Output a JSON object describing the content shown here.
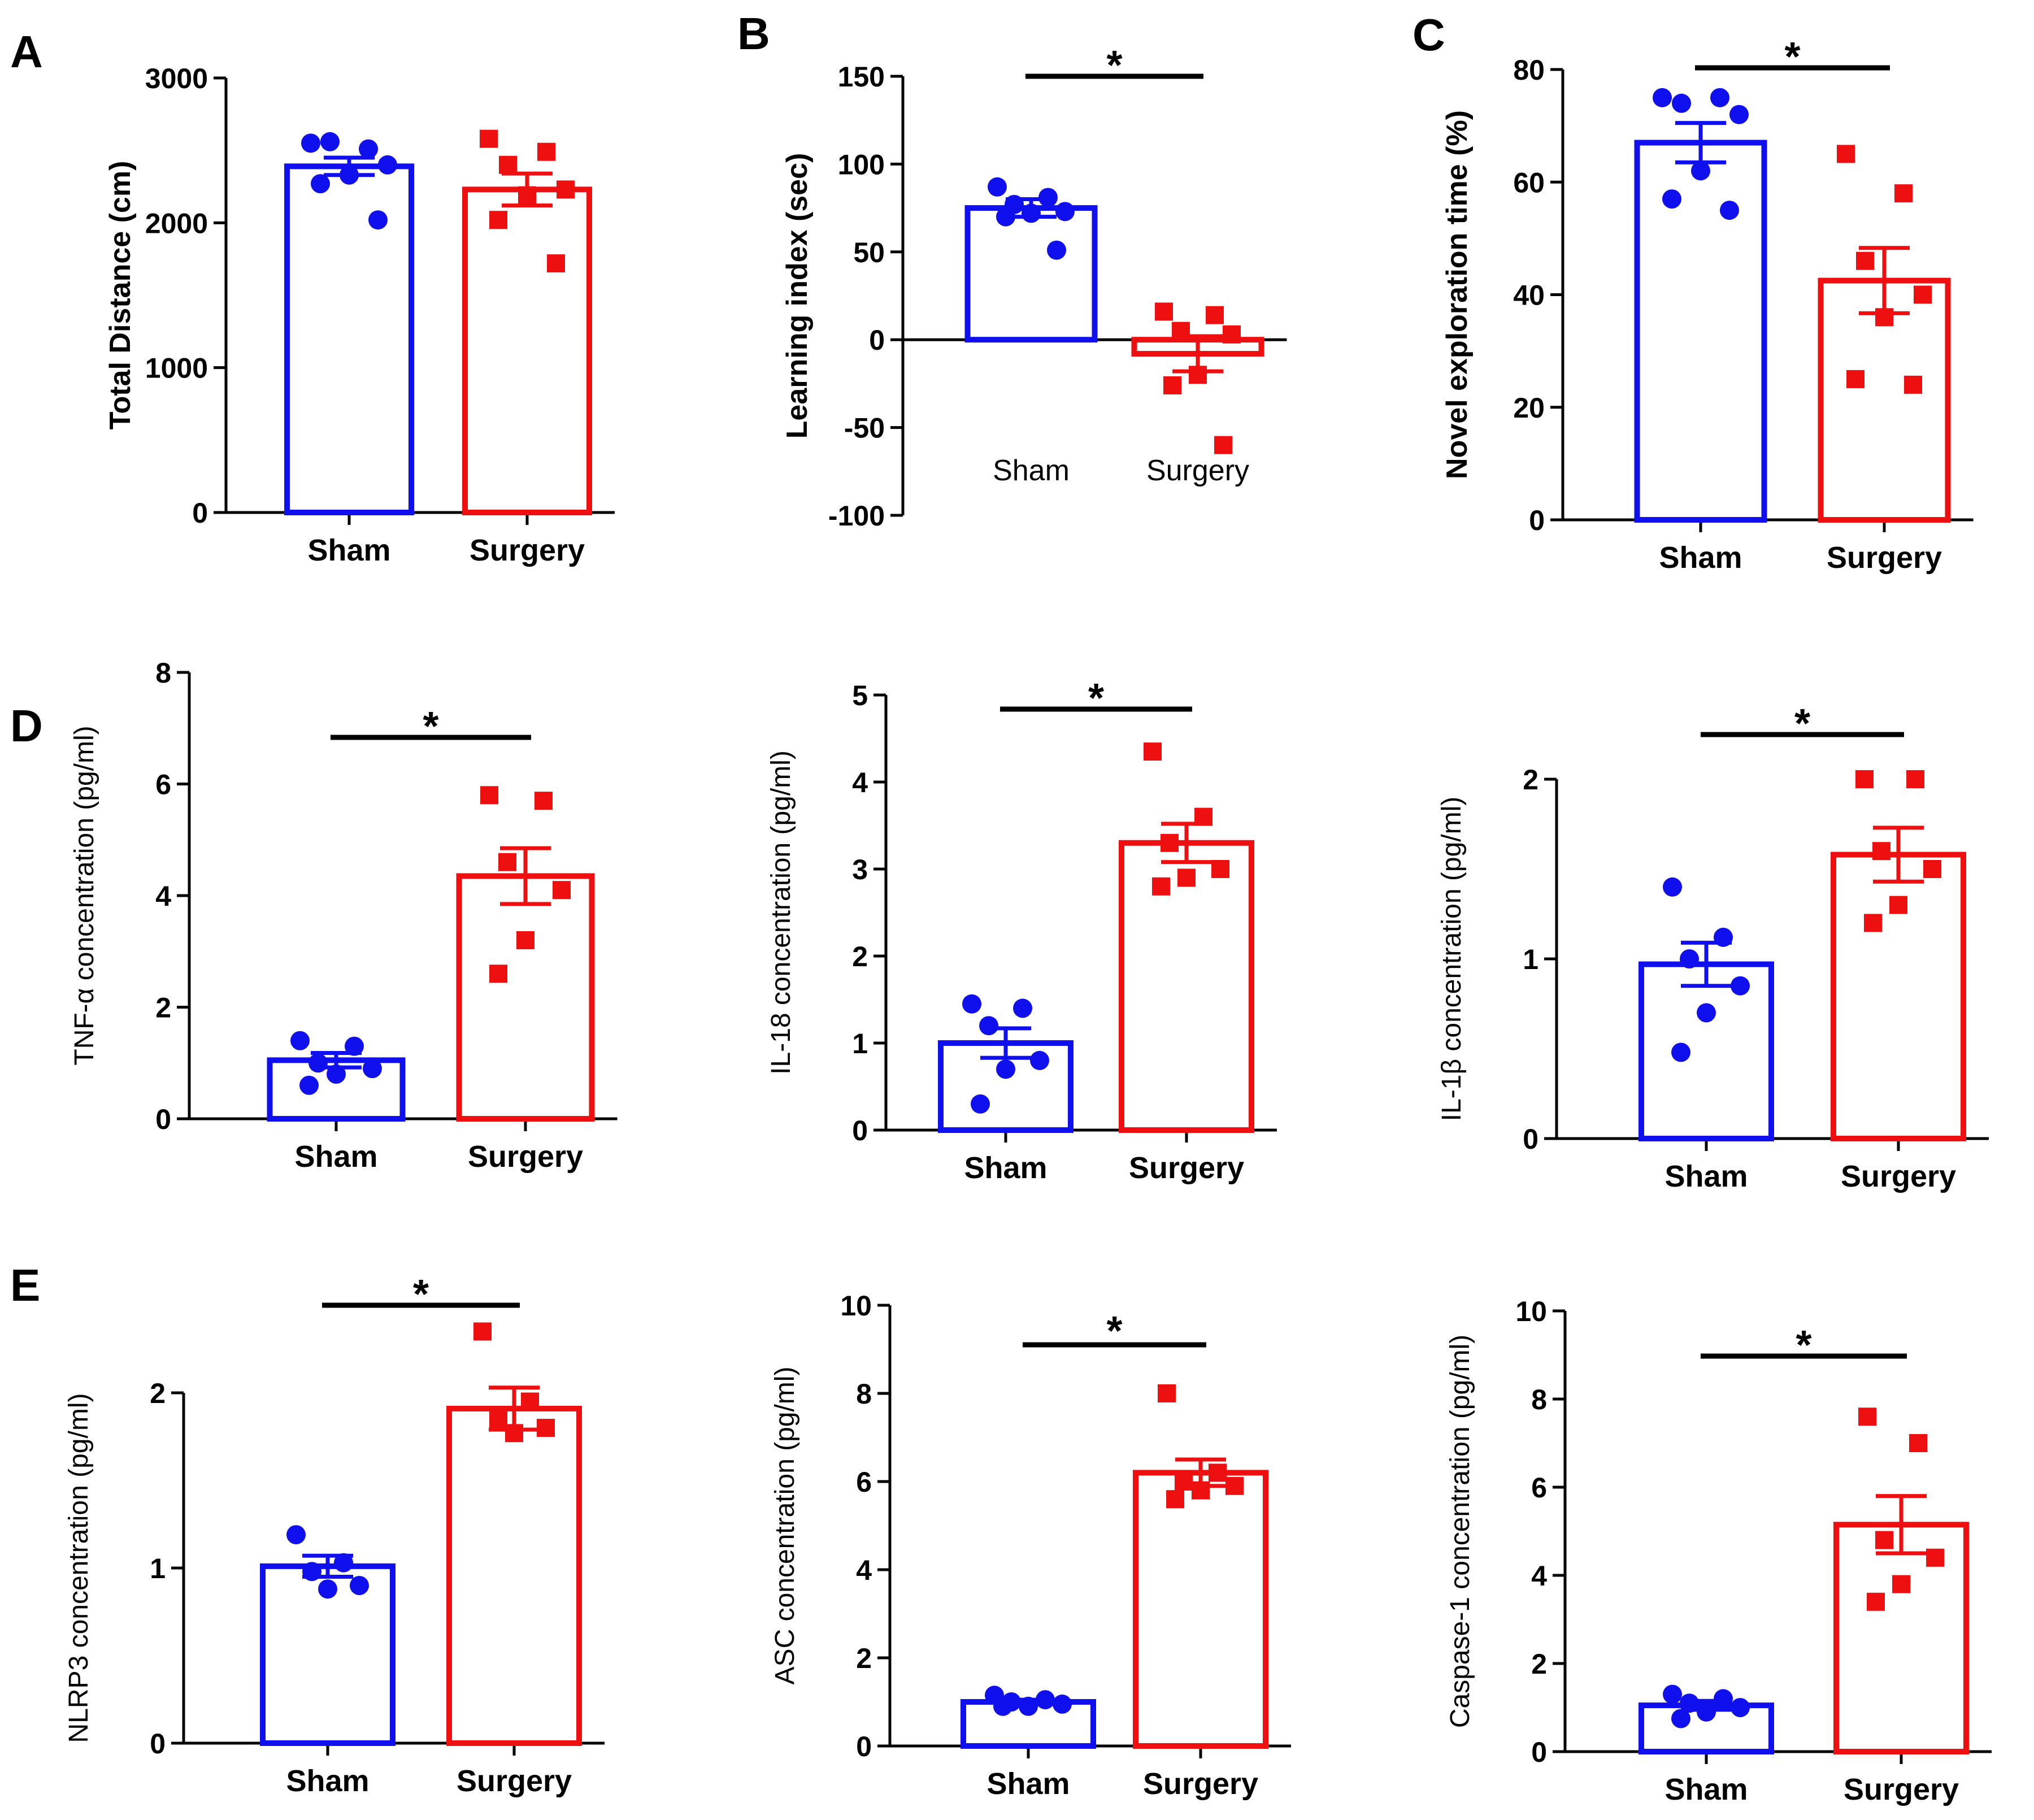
{
  "figure": {
    "panel_letters": [
      "A",
      "B",
      "C",
      "D",
      "E"
    ],
    "group_labels": [
      "Sham",
      "Surgery"
    ],
    "colors": {
      "sham": "#1010ee",
      "surgery": "#ee1010",
      "axis": "#000000"
    }
  },
  "chart_data": [
    {
      "id": "A",
      "type": "bar",
      "title": "",
      "ylabel": "Total Distance (cm)",
      "bold_ylabel": true,
      "label_style": "bold-below",
      "categories": [
        "Sham",
        "Surgery"
      ],
      "ylim": [
        0,
        3000
      ],
      "yticks": [
        0,
        1000,
        2000,
        3000
      ],
      "means": [
        2390,
        2230
      ],
      "sem": [
        60,
        110
      ],
      "points": [
        [
          2550,
          2510,
          2560,
          2400,
          2330,
          2270,
          2020
        ],
        [
          2580,
          2490,
          2400,
          2230,
          2190,
          2020,
          1720
        ]
      ],
      "significance": null
    },
    {
      "id": "B",
      "type": "bar",
      "title": "",
      "ylabel": "Learning index (sec)",
      "bold_ylabel": true,
      "label_style": "inside-normal",
      "categories": [
        "Sham",
        "Surgery"
      ],
      "ylim": [
        -100,
        150
      ],
      "yticks": [
        -100,
        -50,
        0,
        50,
        100,
        150
      ],
      "means": [
        75,
        -8
      ],
      "sem": [
        5,
        10
      ],
      "points": [
        [
          87,
          81,
          77,
          73,
          72,
          70,
          51
        ],
        [
          16,
          14,
          5,
          3,
          -20,
          -26,
          -60
        ]
      ],
      "significance": "*"
    },
    {
      "id": "C",
      "type": "bar",
      "title": "",
      "ylabel": "Novel exploration time (%)",
      "bold_ylabel": true,
      "label_style": "bold-below",
      "categories": [
        "Sham",
        "Surgery"
      ],
      "ylim": [
        0,
        80
      ],
      "yticks": [
        0,
        20,
        40,
        60,
        80
      ],
      "means": [
        67,
        42.5
      ],
      "sem": [
        3.5,
        5.8
      ],
      "points": [
        [
          75,
          75,
          74,
          72,
          62,
          57,
          55
        ],
        [
          65,
          58,
          46,
          40,
          36,
          25,
          24
        ]
      ],
      "significance": "*"
    },
    {
      "id": "D1",
      "type": "bar",
      "title": "",
      "ylabel": "TNF-α concentration (pg/ml)",
      "bold_ylabel": false,
      "label_style": "bold-below",
      "categories": [
        "Sham",
        "Surgery"
      ],
      "ylim": [
        0,
        8
      ],
      "yticks": [
        0,
        2,
        4,
        6,
        8
      ],
      "means": [
        1.05,
        4.35
      ],
      "sem": [
        0.13,
        0.5
      ],
      "points": [
        [
          1.4,
          1.3,
          1.0,
          0.9,
          0.8,
          0.6
        ],
        [
          5.8,
          5.7,
          4.6,
          4.1,
          3.2,
          2.6
        ]
      ],
      "significance": "*"
    },
    {
      "id": "D2",
      "type": "bar",
      "title": "",
      "ylabel": "IL-18 concentration (pg/ml)",
      "bold_ylabel": false,
      "label_style": "bold-below",
      "categories": [
        "Sham",
        "Surgery"
      ],
      "ylim": [
        0,
        5
      ],
      "yticks": [
        0,
        1,
        2,
        3,
        4,
        5
      ],
      "means": [
        1.0,
        3.3
      ],
      "sem": [
        0.17,
        0.22
      ],
      "points": [
        [
          1.45,
          1.4,
          1.2,
          0.8,
          0.7,
          0.3
        ],
        [
          4.35,
          3.6,
          3.3,
          3.0,
          2.9,
          2.8
        ]
      ],
      "significance": "*"
    },
    {
      "id": "D3",
      "type": "bar",
      "title": "",
      "ylabel": "IL-1β concentration (pg/ml)",
      "bold_ylabel": false,
      "label_style": "bold-below",
      "categories": [
        "Sham",
        "Surgery"
      ],
      "ylim": [
        0,
        2.5
      ],
      "yticks": [
        0,
        1,
        2
      ],
      "means": [
        0.97,
        1.58
      ],
      "sem": [
        0.12,
        0.15
      ],
      "points": [
        [
          1.4,
          1.12,
          1.0,
          0.85,
          0.7,
          0.48
        ],
        [
          2.0,
          2.0,
          1.6,
          1.5,
          1.3,
          1.2
        ]
      ],
      "significance": "*"
    },
    {
      "id": "E1",
      "type": "bar",
      "title": "",
      "ylabel": "NLRP3 concentration (pg/ml)",
      "bold_ylabel": false,
      "label_style": "bold-below",
      "categories": [
        "Sham",
        "Surgery"
      ],
      "ylim": [
        0,
        2.5
      ],
      "yticks": [
        0,
        1,
        2
      ],
      "means": [
        1.01,
        1.91
      ],
      "sem": [
        0.06,
        0.12
      ],
      "points": [
        [
          1.19,
          1.03,
          0.98,
          0.9,
          0.88
        ],
        [
          2.35,
          1.95,
          1.85,
          1.8,
          1.77
        ]
      ],
      "significance": "*"
    },
    {
      "id": "E2",
      "type": "bar",
      "title": "",
      "ylabel": "ASC concentration (pg/ml)",
      "bold_ylabel": false,
      "label_style": "bold-below",
      "categories": [
        "Sham",
        "Surgery"
      ],
      "ylim": [
        0,
        10
      ],
      "yticks": [
        0,
        2,
        4,
        6,
        8,
        10
      ],
      "means": [
        1.0,
        6.2
      ],
      "sem": [
        0.05,
        0.3
      ],
      "points": [
        [
          1.15,
          1.05,
          1.0,
          0.95,
          0.9,
          0.9
        ],
        [
          8.0,
          6.2,
          6.0,
          5.9,
          5.8,
          5.6
        ]
      ],
      "significance": "*"
    },
    {
      "id": "E3",
      "type": "bar",
      "title": "",
      "ylabel": "Caspase-1 concentration (pg/ml)",
      "bold_ylabel": false,
      "label_style": "bold-below",
      "categories": [
        "Sham",
        "Surgery"
      ],
      "ylim": [
        0,
        10
      ],
      "yticks": [
        0,
        2,
        4,
        6,
        8,
        10
      ],
      "means": [
        1.05,
        5.15
      ],
      "sem": [
        0.1,
        0.65
      ],
      "points": [
        [
          1.3,
          1.2,
          1.1,
          1.0,
          0.9,
          0.75
        ],
        [
          7.6,
          7.0,
          4.8,
          4.4,
          3.8,
          3.4
        ]
      ],
      "significance": "*"
    }
  ]
}
